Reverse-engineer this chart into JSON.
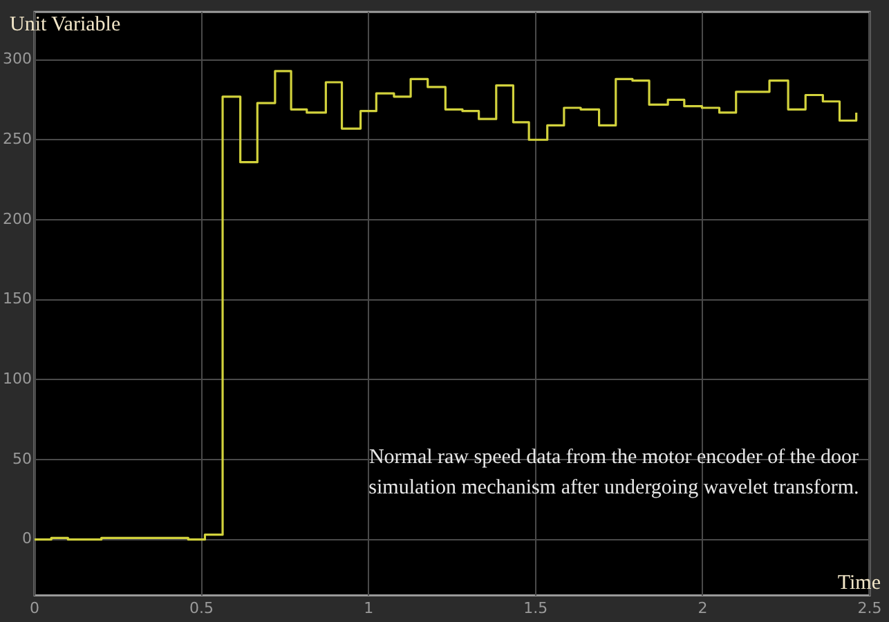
{
  "chart_data": {
    "type": "step",
    "ylabel": "Unit Variable",
    "xlabel": "Time",
    "annotations": [
      "Normal raw speed data from the motor encoder of the door simulation mechanism after undergoing wavelet transform."
    ],
    "x": [
      0,
      0.05,
      0.1,
      0.2,
      0.46,
      0.51,
      0.563,
      0.616,
      0.667,
      0.72,
      0.768,
      0.815,
      0.872,
      0.92,
      0.976,
      1.023,
      1.076,
      1.126,
      1.177,
      1.23,
      1.281,
      1.33,
      1.382,
      1.433,
      1.48,
      1.535,
      1.585,
      1.635,
      1.69,
      1.74,
      1.79,
      1.84,
      1.896,
      1.945,
      1.998,
      2.05,
      2.1,
      2.2,
      2.256,
      2.308,
      2.36,
      2.41,
      2.46
    ],
    "values": [
      0,
      1,
      0,
      1,
      0,
      3,
      277,
      236,
      273,
      293,
      269,
      267,
      286,
      257,
      268,
      279,
      277,
      288,
      283,
      269,
      268,
      263,
      284,
      261,
      250,
      259,
      270,
      269,
      259,
      288,
      287,
      272,
      275,
      271,
      270,
      267,
      280,
      287,
      269,
      278,
      274,
      262,
      267
    ],
    "color": "#d2d23c",
    "xlim": [
      0,
      2.5
    ],
    "ylim": [
      -35,
      330
    ],
    "xticks": [
      0,
      0.5,
      1,
      1.5,
      2,
      2.5
    ],
    "yticks": [
      0,
      50,
      100,
      150,
      200,
      250,
      300
    ],
    "grid": true
  }
}
